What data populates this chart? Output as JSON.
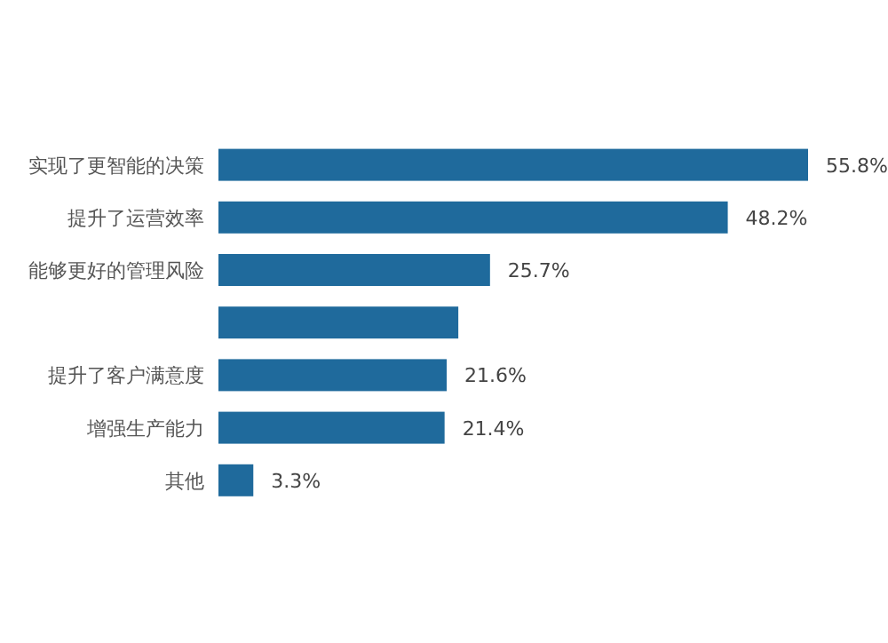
{
  "chart_data": {
    "type": "bar",
    "orientation": "horizontal",
    "color": "#1f6a9c",
    "categories": [
      "实现了更智能的决策",
      "提升了运营效率",
      "能够更好的管理风险",
      null,
      "提升了客户满意度",
      "增强生产能力",
      "其他"
    ],
    "values": [
      55.8,
      48.2,
      25.7,
      22.7,
      21.6,
      21.4,
      3.3
    ],
    "value_labels": [
      "55.8%",
      "48.2%",
      "25.7%",
      null,
      "21.6%",
      "21.4%",
      "3.3%"
    ]
  }
}
